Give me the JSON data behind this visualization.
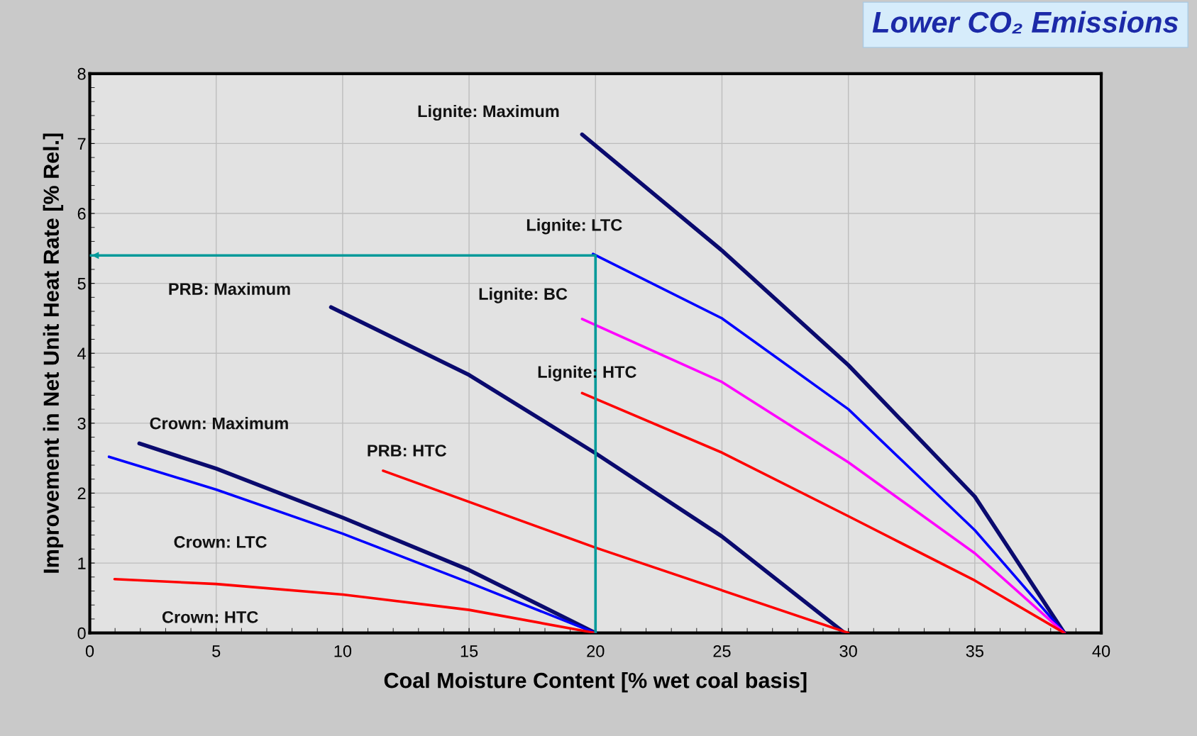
{
  "chart_data": {
    "type": "line",
    "xlabel": "Coal Moisture Content [% wet coal basis]",
    "ylabel": "Improvement in Net Unit Heat Rate [% Rel.]",
    "annotations": [
      "Lower CO₂ Emissions"
    ],
    "xlim": [
      0,
      40
    ],
    "xticks": [
      0,
      5,
      10,
      15,
      20,
      25,
      30,
      35,
      40
    ],
    "ylim": [
      0,
      8
    ],
    "yticks": [
      0,
      1,
      2,
      3,
      4,
      5,
      6,
      7,
      8
    ],
    "grid": true,
    "legend": false,
    "marker": "none",
    "line_style": "solid",
    "series": [
      {
        "name": "Lignite: Maximum",
        "color": "#0a0a6e",
        "x": [
          19.47,
          25,
          30,
          35,
          38.54
        ],
        "values": [
          7.13,
          5.47,
          3.83,
          1.95,
          0
        ]
      },
      {
        "name": "Lignite: LTC",
        "color": "#0000ff",
        "x": [
          19.9,
          25,
          30,
          35,
          38.54
        ],
        "values": [
          5.42,
          4.5,
          3.2,
          1.47,
          0
        ]
      },
      {
        "name": "Lignite: BC",
        "color": "#ff00ff",
        "x": [
          19.47,
          25,
          30,
          35,
          38.54
        ],
        "values": [
          4.49,
          3.59,
          2.44,
          1.14,
          0
        ]
      },
      {
        "name": "Lignite: HTC",
        "color": "#ff0000",
        "x": [
          19.47,
          25,
          30,
          35,
          38.54
        ],
        "values": [
          3.43,
          2.58,
          1.67,
          0.75,
          0
        ]
      },
      {
        "name": "PRB: Maximum",
        "color": "#0a0a6e",
        "x": [
          9.54,
          15,
          20,
          25,
          29.85
        ],
        "values": [
          4.66,
          3.69,
          2.57,
          1.38,
          0
        ]
      },
      {
        "name": "PRB: HTC",
        "color": "#ff0000",
        "x": [
          11.6,
          20,
          30
        ],
        "values": [
          2.32,
          1.22,
          0
        ]
      },
      {
        "name": "Crown: Maximum",
        "color": "#0a0a6e",
        "x": [
          1.96,
          5,
          10,
          15,
          20
        ],
        "values": [
          2.71,
          2.35,
          1.65,
          0.9,
          0
        ]
      },
      {
        "name": "Crown: LTC",
        "color": "#0000ff",
        "x": [
          0.76,
          5,
          10,
          15,
          20
        ],
        "values": [
          2.52,
          2.05,
          1.42,
          0.72,
          0
        ]
      },
      {
        "name": "Crown: HTC",
        "color": "#ff0000",
        "x": [
          0.98,
          5,
          10,
          15,
          20
        ],
        "values": [
          0.77,
          0.7,
          0.55,
          0.33,
          0
        ]
      },
      {
        "color": "#009999",
        "x": [
          0,
          20,
          20
        ],
        "values": [
          5.4,
          5.4,
          0
        ]
      }
    ]
  }
}
